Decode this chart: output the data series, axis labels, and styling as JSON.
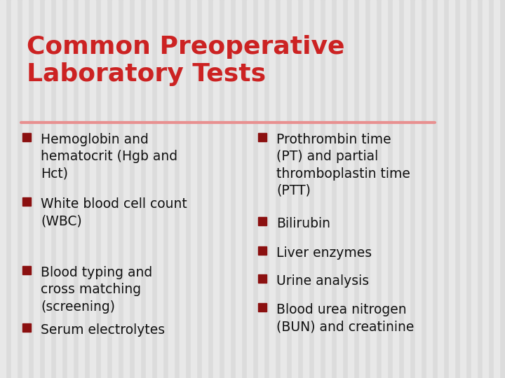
{
  "title_line1": "Common Preoperative",
  "title_line2": "Laboratory Tests",
  "title_color": "#CC2222",
  "title_fontsize": 26,
  "background_color": "#DCDCDC",
  "stripe_color": "#E8E8E8",
  "divider_color": "#E89090",
  "bullet_color": "#8B1010",
  "text_color": "#111111",
  "bullet_fontsize": 13.5,
  "left_bullets": [
    "Hemoglobin and\nhematocrit (Hgb and\nHct)",
    "White blood cell count\n(WBC)",
    "Blood typing and\ncross matching\n(screening)",
    "Serum electrolytes"
  ],
  "right_bullets": [
    "Prothrombin time\n(PT) and partial\nthromboplastin time\n(PTT)",
    "Bilirubin",
    "Liver enzymes",
    "Urine analysis",
    "Blood urea nitrogen\n(BUN) and creatinine"
  ]
}
